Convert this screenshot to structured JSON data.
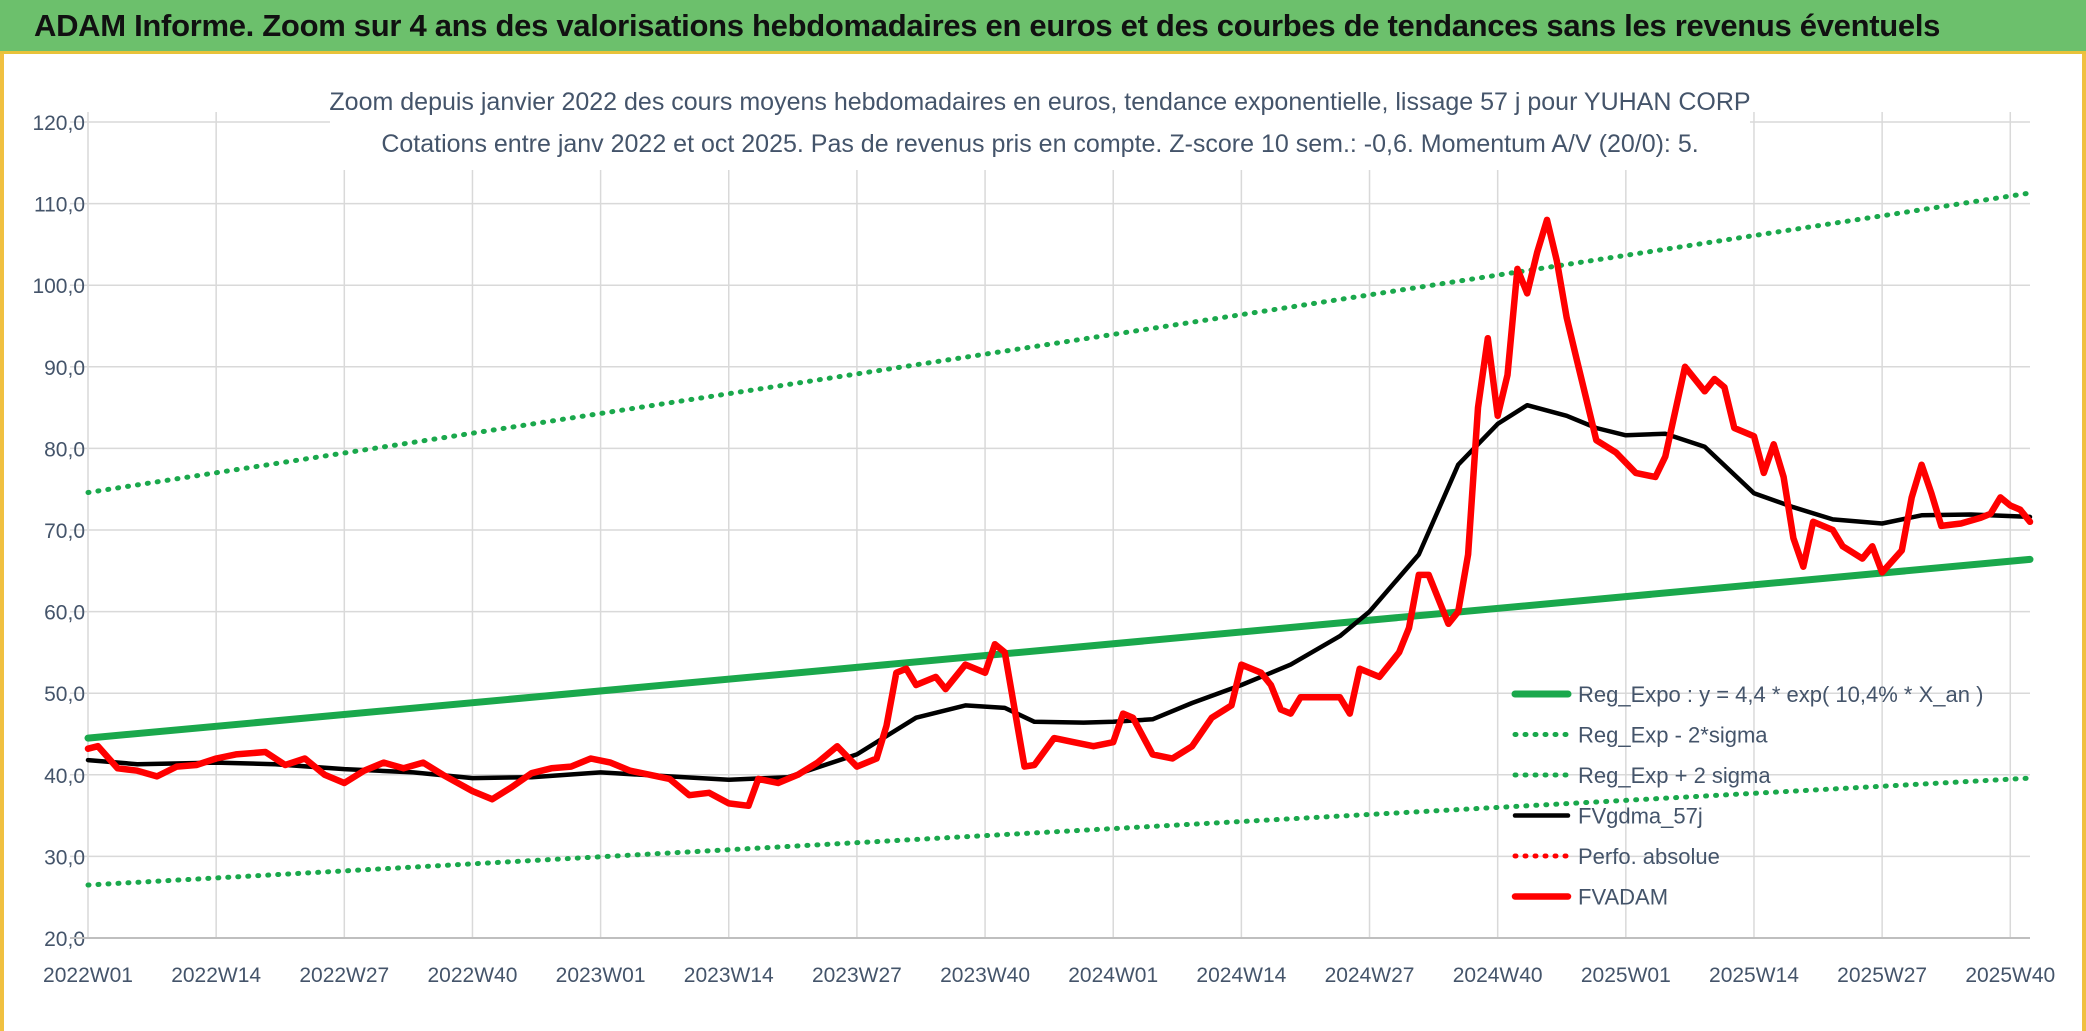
{
  "banner": {
    "title": "ADAM Informe. Zoom sur 4 ans des valorisations hebdomadaires en euros et des courbes de tendances sans les revenus éventuels"
  },
  "colors": {
    "banner_bg": "#6cc06c",
    "reg_expo": "#1aa84c",
    "bands": "#1aa84c",
    "fvgdma": "#000000",
    "fvadam": "#ff0000",
    "perfo": "#ff0000",
    "grid": "#d9d9d9",
    "text": "#44546a"
  },
  "chart_data": {
    "type": "line",
    "title": "Zoom depuis janvier 2022 des cours moyens hebdomadaires en euros, tendance exponentielle, lissage 57 j pour YUHAN CORP",
    "subtitle": "Cotations entre janv 2022 et oct 2025. Pas de revenus pris en compte. Z-score 10 sem.: -0,6. Momentum A/V (20/0): 5.",
    "xlabel": "",
    "ylabel": "",
    "ylim": [
      20,
      120
    ],
    "yticks": [
      "20,0",
      "30,0",
      "40,0",
      "50,0",
      "60,0",
      "70,0",
      "80,0",
      "90,0",
      "100,0",
      "110,0",
      "120,0"
    ],
    "xtick_labels": [
      "2022W01",
      "2022W14",
      "2022W27",
      "2022W40",
      "2023W01",
      "2023W14",
      "2023W27",
      "2023W40",
      "2024W01",
      "2024W14",
      "2024W27",
      "2024W40",
      "2025W01",
      "2025W14",
      "2025W27",
      "2025W40"
    ],
    "grid": true,
    "legend_position": "bottom-right",
    "series": [
      {
        "name": "Reg_Expo : y = 4,4 * exp( 10,4% *  X_an )",
        "style": "solid-thick",
        "points": [
          [
            "2022W01",
            44.5
          ],
          [
            "2025W42",
            66.4
          ]
        ]
      },
      {
        "name": "Reg_Exp - 2*sigma",
        "style": "dotted",
        "points": [
          [
            "2022W01",
            26.5
          ],
          [
            "2025W42",
            39.6
          ]
        ]
      },
      {
        "name": "Reg_Exp + 2 sigma",
        "style": "dotted",
        "points": [
          [
            "2022W01",
            74.6
          ],
          [
            "2025W42",
            111.3
          ]
        ]
      },
      {
        "name": "FVgdma_57j",
        "style": "solid",
        "points": [
          [
            "2022W01",
            41.8
          ],
          [
            "2022W06",
            41.3
          ],
          [
            "2022W14",
            41.5
          ],
          [
            "2022W20",
            41.3
          ],
          [
            "2022W27",
            40.7
          ],
          [
            "2022W34",
            40.3
          ],
          [
            "2022W40",
            39.6
          ],
          [
            "2022W46",
            39.7
          ],
          [
            "2023W01",
            40.3
          ],
          [
            "2023W08",
            39.8
          ],
          [
            "2023W14",
            39.4
          ],
          [
            "2023W20",
            39.7
          ],
          [
            "2023W27",
            42.5
          ],
          [
            "2023W33",
            47.0
          ],
          [
            "2023W38",
            48.5
          ],
          [
            "2023W42",
            48.2
          ],
          [
            "2023W45",
            46.5
          ],
          [
            "2023W50",
            46.4
          ],
          [
            "2024W01",
            46.5
          ],
          [
            "2024W05",
            46.8
          ],
          [
            "2024W09",
            48.8
          ],
          [
            "2024W14",
            51.0
          ],
          [
            "2024W19",
            53.5
          ],
          [
            "2024W24",
            57.0
          ],
          [
            "2024W27",
            60.0
          ],
          [
            "2024W32",
            67.0
          ],
          [
            "2024W36",
            78.0
          ],
          [
            "2024W40",
            83.0
          ],
          [
            "2024W43",
            85.3
          ],
          [
            "2024W47",
            84.0
          ],
          [
            "2024W50",
            82.5
          ],
          [
            "2025W01",
            81.6
          ],
          [
            "2025W05",
            81.8
          ],
          [
            "2025W09",
            80.2
          ],
          [
            "2025W14",
            74.5
          ],
          [
            "2025W18",
            72.8
          ],
          [
            "2025W22",
            71.3
          ],
          [
            "2025W27",
            70.8
          ],
          [
            "2025W31",
            71.8
          ],
          [
            "2025W36",
            71.9
          ],
          [
            "2025W42",
            71.6
          ]
        ]
      },
      {
        "name": "Perfo. absolue",
        "style": "dotted",
        "points": []
      },
      {
        "name": "FVADAM",
        "style": "solid-thick",
        "points": [
          [
            "2022W01",
            43.2
          ],
          [
            "2022W02",
            43.5
          ],
          [
            "2022W04",
            40.8
          ],
          [
            "2022W06",
            40.5
          ],
          [
            "2022W08",
            39.8
          ],
          [
            "2022W10",
            41.0
          ],
          [
            "2022W12",
            41.2
          ],
          [
            "2022W14",
            42.0
          ],
          [
            "2022W16",
            42.5
          ],
          [
            "2022W19",
            42.8
          ],
          [
            "2022W21",
            41.2
          ],
          [
            "2022W23",
            42.0
          ],
          [
            "2022W25",
            40.0
          ],
          [
            "2022W27",
            39.0
          ],
          [
            "2022W29",
            40.5
          ],
          [
            "2022W31",
            41.5
          ],
          [
            "2022W33",
            40.8
          ],
          [
            "2022W35",
            41.5
          ],
          [
            "2022W37",
            40.0
          ],
          [
            "2022W40",
            38.0
          ],
          [
            "2022W42",
            37.0
          ],
          [
            "2022W44",
            38.5
          ],
          [
            "2022W46",
            40.2
          ],
          [
            "2022W48",
            40.8
          ],
          [
            "2022W50",
            41.0
          ],
          [
            "2022W52",
            42.0
          ],
          [
            "2023W02",
            41.5
          ],
          [
            "2023W04",
            40.5
          ],
          [
            "2023W06",
            40.0
          ],
          [
            "2023W08",
            39.5
          ],
          [
            "2023W10",
            37.5
          ],
          [
            "2023W12",
            37.8
          ],
          [
            "2023W14",
            36.5
          ],
          [
            "2023W16",
            36.2
          ],
          [
            "2023W17",
            39.5
          ],
          [
            "2023W19",
            39.0
          ],
          [
            "2023W21",
            40.0
          ],
          [
            "2023W23",
            41.5
          ],
          [
            "2023W25",
            43.5
          ],
          [
            "2023W27",
            41.0
          ],
          [
            "2023W29",
            42.0
          ],
          [
            "2023W30",
            46.0
          ],
          [
            "2023W31",
            52.5
          ],
          [
            "2023W32",
            53.0
          ],
          [
            "2023W33",
            51.0
          ],
          [
            "2023W35",
            52.0
          ],
          [
            "2023W36",
            50.5
          ],
          [
            "2023W38",
            53.5
          ],
          [
            "2023W40",
            52.5
          ],
          [
            "2023W41",
            56.0
          ],
          [
            "2023W42",
            55.0
          ],
          [
            "2023W44",
            41.0
          ],
          [
            "2023W45",
            41.2
          ],
          [
            "2023W47",
            44.5
          ],
          [
            "2023W49",
            44.0
          ],
          [
            "2023W51",
            43.5
          ],
          [
            "2024W01",
            44.0
          ],
          [
            "2024W02",
            47.5
          ],
          [
            "2024W03",
            47.0
          ],
          [
            "2024W05",
            42.5
          ],
          [
            "2024W07",
            42.0
          ],
          [
            "2024W09",
            43.5
          ],
          [
            "2024W11",
            47.0
          ],
          [
            "2024W13",
            48.5
          ],
          [
            "2024W14",
            53.5
          ],
          [
            "2024W16",
            52.5
          ],
          [
            "2024W17",
            51.0
          ],
          [
            "2024W18",
            48.0
          ],
          [
            "2024W19",
            47.5
          ],
          [
            "2024W20",
            49.5
          ],
          [
            "2024W22",
            49.5
          ],
          [
            "2024W24",
            49.5
          ],
          [
            "2024W25",
            47.5
          ],
          [
            "2024W26",
            53.0
          ],
          [
            "2024W28",
            52.0
          ],
          [
            "2024W30",
            55.0
          ],
          [
            "2024W31",
            58.0
          ],
          [
            "2024W32",
            64.5
          ],
          [
            "2024W33",
            64.5
          ],
          [
            "2024W35",
            58.5
          ],
          [
            "2024W36",
            60.0
          ],
          [
            "2024W37",
            67.0
          ],
          [
            "2024W38",
            85.0
          ],
          [
            "2024W39",
            93.5
          ],
          [
            "2024W40",
            84.0
          ],
          [
            "2024W41",
            89.0
          ],
          [
            "2024W42",
            102.0
          ],
          [
            "2024W43",
            99.0
          ],
          [
            "2024W44",
            104.0
          ],
          [
            "2024W45",
            108.0
          ],
          [
            "2024W46",
            103.0
          ],
          [
            "2024W47",
            96.0
          ],
          [
            "2024W48",
            91.0
          ],
          [
            "2024W50",
            81.0
          ],
          [
            "2024W52",
            79.5
          ],
          [
            "2025W02",
            77.0
          ],
          [
            "2025W04",
            76.5
          ],
          [
            "2025W05",
            79.0
          ],
          [
            "2025W07",
            90.0
          ],
          [
            "2025W09",
            87.0
          ],
          [
            "2025W10",
            88.5
          ],
          [
            "2025W11",
            87.5
          ],
          [
            "2025W12",
            82.5
          ],
          [
            "2025W14",
            81.5
          ],
          [
            "2025W15",
            77.0
          ],
          [
            "2025W16",
            80.5
          ],
          [
            "2025W17",
            76.5
          ],
          [
            "2025W18",
            69.0
          ],
          [
            "2025W19",
            65.5
          ],
          [
            "2025W20",
            71.0
          ],
          [
            "2025W22",
            70.0
          ],
          [
            "2025W23",
            68.0
          ],
          [
            "2025W25",
            66.5
          ],
          [
            "2025W26",
            68.0
          ],
          [
            "2025W27",
            64.8
          ],
          [
            "2025W29",
            67.5
          ],
          [
            "2025W30",
            74.0
          ],
          [
            "2025W31",
            78.0
          ],
          [
            "2025W32",
            74.5
          ],
          [
            "2025W33",
            70.5
          ],
          [
            "2025W35",
            70.8
          ],
          [
            "2025W37",
            71.5
          ],
          [
            "2025W38",
            72.0
          ],
          [
            "2025W39",
            74.0
          ],
          [
            "2025W40",
            73.0
          ],
          [
            "2025W41",
            72.5
          ],
          [
            "2025W42",
            71.0
          ]
        ]
      }
    ]
  }
}
